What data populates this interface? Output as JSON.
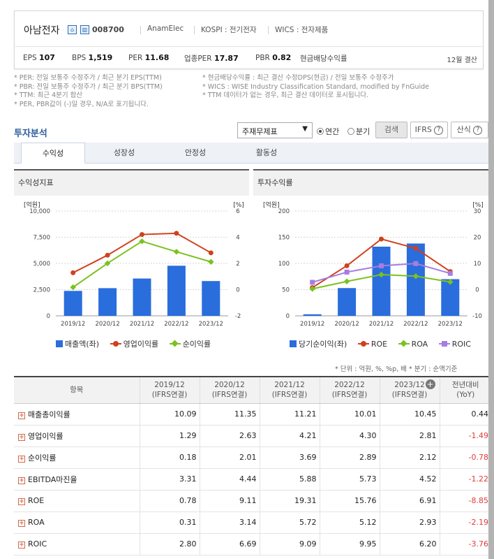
{
  "company": {
    "name": "아남전자",
    "code": "008700",
    "eng_name": "AnamElec",
    "market": "KOSPI : 전기전자",
    "wics": "WICS : 전자제품",
    "icons": [
      "home-icon",
      "building-icon"
    ]
  },
  "stats": {
    "eps_label": "EPS",
    "eps_value": "107",
    "bps_label": "BPS",
    "bps_value": "1,519",
    "per_label": "PER",
    "per_value": "11.68",
    "sector_per_label": "업종PER",
    "sector_per_value": "17.87",
    "pbr_label": "PBR",
    "pbr_value": "0.82",
    "dividend_label": "현금배당수익률",
    "fiscal": "12월 결산"
  },
  "notes": {
    "left": [
      "* PER: 전일 보통주 수정주가 / 최근 분기 EPS(TTM)",
      "* PBR: 전일 보통주 수정주가 / 최근 분기 BPS(TTM)",
      "* TTM: 최근 4분기 합산",
      "* PER, PBR값이 (-)일 경우, N/A로 표기됩니다."
    ],
    "right": [
      "* 현금배당수익률 : 최근 결산 수정DPS(현금) / 전일 보통주 수정주가",
      "* WICS : WISE Industry Classification Standard, modified by FnGuide",
      "* TTM 데이터가 없는 경우, 최근 결산 데이터로 표시됩니다."
    ]
  },
  "analysis": {
    "title": "투자분석",
    "select_value": "주재무제표",
    "radio_annual": "연간",
    "radio_quarter": "분기",
    "search_btn": "검색",
    "ifrs_btn": "IFRS",
    "new_btn": "산식",
    "tabs": [
      "수익성",
      "성장성",
      "안정성",
      "활동성"
    ]
  },
  "panels": {
    "left_title": "수익성지표",
    "right_title": "투자수익률"
  },
  "chart_data": [
    {
      "type": "bar",
      "categories": [
        "2019/12",
        "2020/12",
        "2021/12",
        "2022/12",
        "2023/12"
      ],
      "left_unit": "[억원]",
      "right_unit": "[%]",
      "ylim": [
        0,
        10000
      ],
      "y_ticks": [
        "10,000",
        "7,500",
        "5,000",
        "2,500",
        "0"
      ],
      "y2lim": [
        -2,
        6
      ],
      "y2_ticks": [
        "6",
        "4",
        "2",
        "0",
        "-2"
      ],
      "series": [
        {
          "name": "매출액(좌)",
          "kind": "bar",
          "axis": "left",
          "color": "#2a6ddc",
          "values": [
            2380,
            2640,
            3560,
            4780,
            3320
          ]
        },
        {
          "name": "영업이익률",
          "kind": "line",
          "axis": "right",
          "marker": "circle",
          "color": "#d0411e",
          "values": [
            1.29,
            2.63,
            4.21,
            4.3,
            2.81
          ]
        },
        {
          "name": "순이익률",
          "kind": "line",
          "axis": "right",
          "marker": "diamond",
          "color": "#7ac21f",
          "values": [
            0.18,
            2.01,
            3.69,
            2.89,
            2.12
          ]
        }
      ]
    },
    {
      "type": "bar",
      "categories": [
        "2019/12",
        "2020/12",
        "2021/12",
        "2022/12",
        "2023/12"
      ],
      "left_unit": "[억원]",
      "right_unit": "[%]",
      "ylim": [
        0,
        200
      ],
      "y_ticks": [
        "200",
        "150",
        "100",
        "50",
        "0"
      ],
      "y2lim": [
        -10,
        30
      ],
      "y2_ticks": [
        "30",
        "20",
        "10",
        "0",
        "-10"
      ],
      "series": [
        {
          "name": "당기순이익(좌)",
          "kind": "bar",
          "axis": "left",
          "color": "#2a6ddc",
          "values": [
            3,
            53,
            132,
            138,
            70
          ]
        },
        {
          "name": "ROE",
          "kind": "line",
          "axis": "right",
          "marker": "circle",
          "color": "#d0411e",
          "values": [
            0.78,
            9.11,
            19.31,
            15.76,
            6.91
          ]
        },
        {
          "name": "ROA",
          "kind": "line",
          "axis": "right",
          "marker": "diamond",
          "color": "#7ac21f",
          "values": [
            0.31,
            3.14,
            5.72,
            5.12,
            2.93
          ]
        },
        {
          "name": "ROIC",
          "kind": "line",
          "axis": "right",
          "marker": "square",
          "color": "#a77de0",
          "values": [
            2.8,
            6.69,
            9.09,
            9.95,
            6.2
          ]
        }
      ]
    }
  ],
  "table": {
    "units_note": "* 단위 : 억원, %, %p, 배    * 분기 : 순액기준",
    "headers": [
      "항목",
      "2019/12|(IFRS연결)",
      "2020/12|(IFRS연결)",
      "2021/12|(IFRS연결)",
      "2022/12|(IFRS연결)",
      "2023/12|(IFRS연결)",
      "전년대비|(YoY)"
    ],
    "rows": [
      {
        "label": "매출총이익률",
        "values": [
          "10.09",
          "11.35",
          "11.21",
          "10.01",
          "10.45",
          "0.44"
        ]
      },
      {
        "label": "영업이익률",
        "values": [
          "1.29",
          "2.63",
          "4.21",
          "4.30",
          "2.81",
          "-1.49"
        ]
      },
      {
        "label": "순이익률",
        "values": [
          "0.18",
          "2.01",
          "3.69",
          "2.89",
          "2.12",
          "-0.78"
        ]
      },
      {
        "label": "EBITDA마진율",
        "values": [
          "3.31",
          "4.44",
          "5.88",
          "5.73",
          "4.52",
          "-1.22"
        ]
      },
      {
        "label": "ROE",
        "values": [
          "0.78",
          "9.11",
          "19.31",
          "15.76",
          "6.91",
          "-8.85"
        ]
      },
      {
        "label": "ROA",
        "values": [
          "0.31",
          "3.14",
          "5.72",
          "5.12",
          "2.93",
          "-2.19"
        ]
      },
      {
        "label": "ROIC",
        "values": [
          "2.80",
          "6.69",
          "9.09",
          "9.95",
          "6.20",
          "-3.76"
        ]
      }
    ]
  }
}
